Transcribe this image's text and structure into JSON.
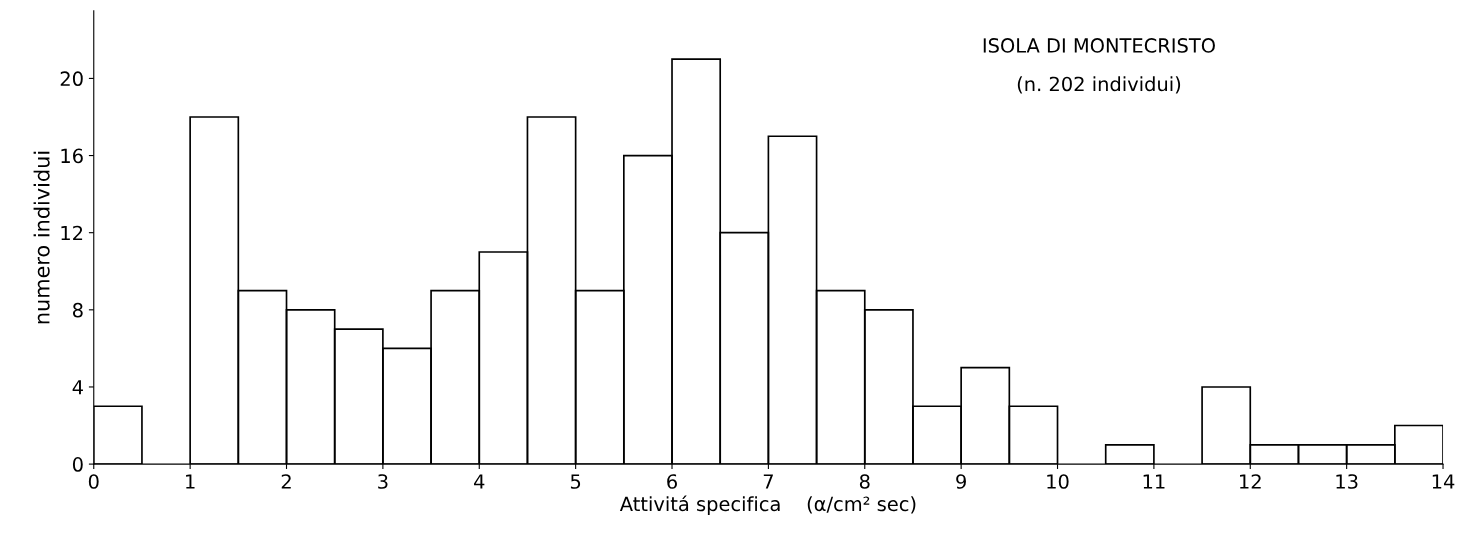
{
  "chart_data": {
    "type": "histogram",
    "xlabel": "Attivitá specifica    (α/cm² sec)",
    "ylabel": "numero individui",
    "annotations": [
      "ISOLA DI MONTECRISTO",
      "(n. 202 individui)"
    ],
    "bins": [
      0,
      0.5,
      1,
      1.5,
      2,
      2.5,
      3,
      3.5,
      4,
      4.5,
      5,
      5.5,
      6,
      6.5,
      7,
      7.5,
      8,
      8.5,
      9,
      9.5,
      10,
      10.5,
      11,
      11.5,
      12,
      12.5,
      13,
      13.5,
      14
    ],
    "values": [
      3,
      0,
      18,
      9,
      8,
      7,
      6,
      9,
      11,
      18,
      9,
      16,
      21,
      12,
      17,
      9,
      8,
      3,
      5,
      3,
      0,
      1,
      0,
      4,
      1,
      1,
      1,
      2
    ],
    "color": "#000000",
    "xlim": [
      0,
      14
    ],
    "ylim": [
      0,
      23.5
    ],
    "xticks": [
      0,
      1,
      2,
      3,
      4,
      5,
      6,
      7,
      8,
      9,
      10,
      11,
      12,
      13,
      14
    ],
    "yticks": [
      0,
      4,
      8,
      12,
      16,
      20
    ],
    "grid": false
  }
}
